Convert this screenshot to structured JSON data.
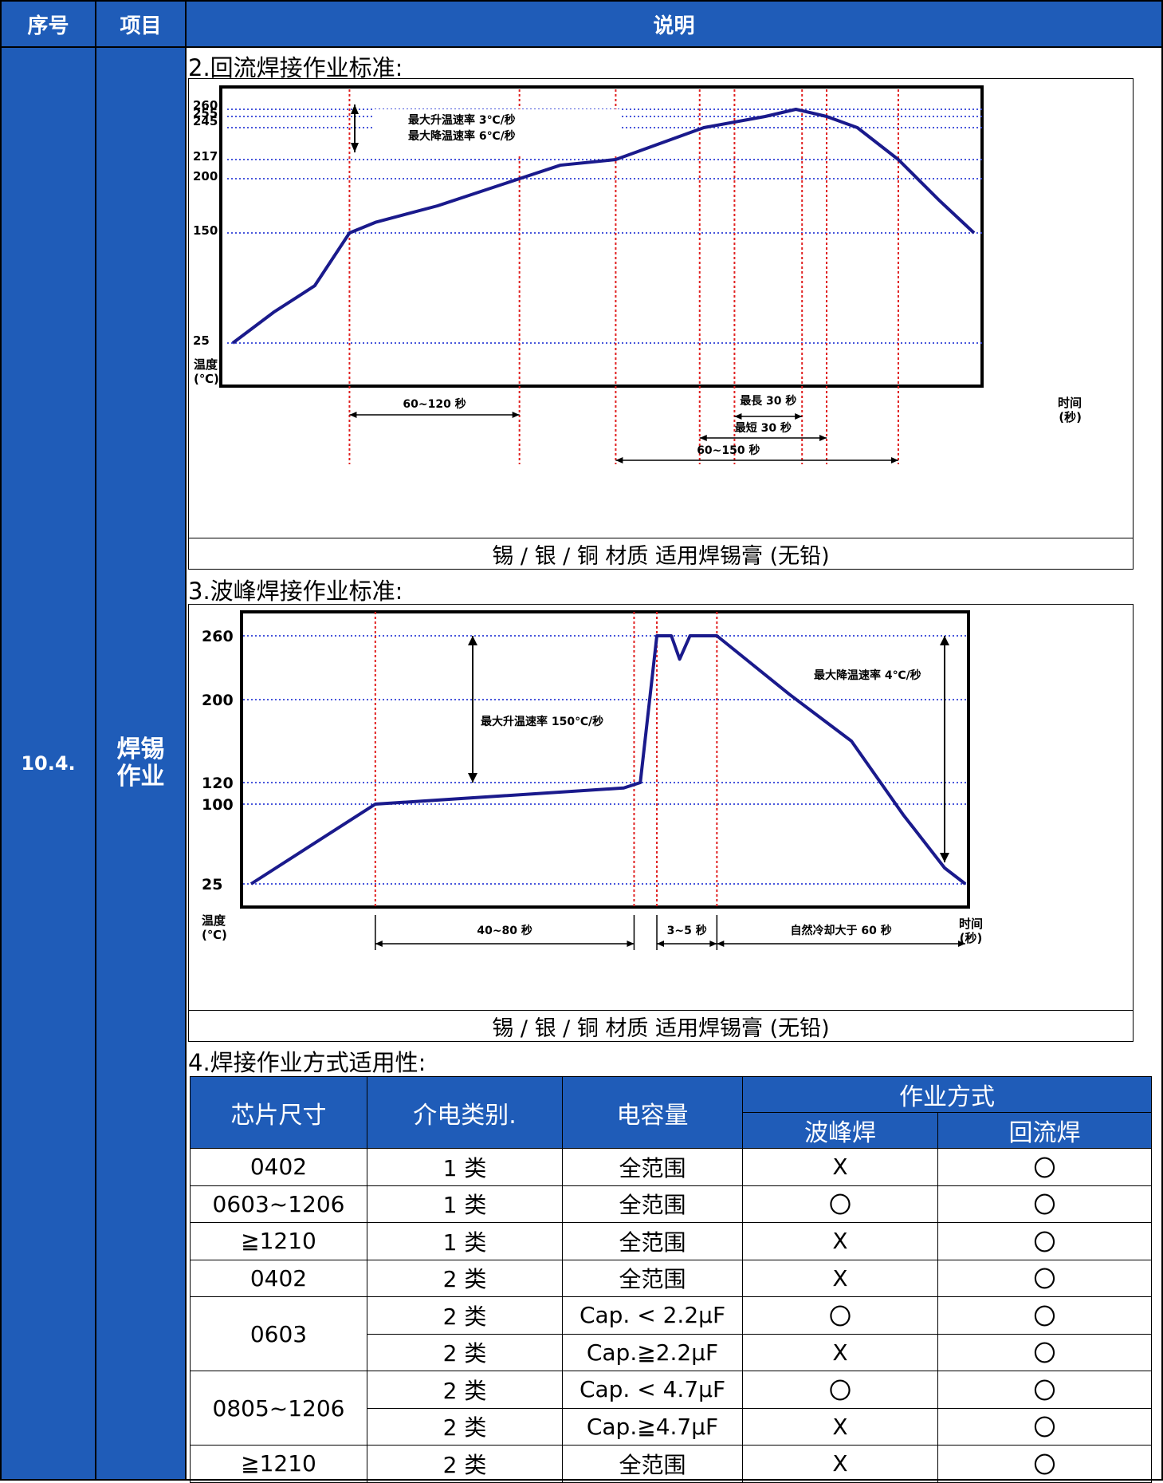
{
  "header": {
    "col_index": "序号",
    "col_item": "项目",
    "col_desc": "说明"
  },
  "section": {
    "number": "10.4.",
    "item": "焊锡\n作业"
  },
  "reflow": {
    "title": "2.回流焊接作业标准:",
    "caption": "锡 / 银 / 铜 材质 适用焊锡膏 (无铅)",
    "chart_data": {
      "type": "line",
      "ylabel": "温度\n(℃)",
      "xlabel": "时间\n(秒)",
      "y_ticks": [
        "260",
        "255",
        "245",
        "217",
        "200",
        "150",
        "25"
      ],
      "annotations": {
        "rise_fall": [
          "最大升温速率 3℃/秒",
          "最大降温速率 6℃/秒"
        ],
        "preheat": "60~120 秒",
        "peak_max": "最長 30 秒",
        "peak_min": "最短 30 秒",
        "above_liquidus": "60~150 秒"
      },
      "series": [
        {
          "points": [
            [
              0,
              25
            ],
            [
              20,
              60
            ],
            [
              40,
              90
            ],
            [
              57,
              150
            ],
            [
              70,
              160
            ],
            [
              100,
              175
            ],
            [
              140,
              200
            ],
            [
              160,
              212
            ],
            [
              187,
              217
            ],
            [
              230,
              245
            ],
            [
              260,
              255
            ],
            [
              275,
              260
            ],
            [
              290,
              255
            ],
            [
              305,
              245
            ],
            [
              325,
              217
            ],
            [
              345,
              180
            ],
            [
              362,
              150
            ]
          ]
        }
      ],
      "markers_x": [
        57,
        140,
        187,
        228,
        245,
        278,
        290,
        325
      ]
    }
  },
  "wave": {
    "title": "3.波峰焊接作业标准:",
    "caption": "锡 / 银 / 铜 材质 适用焊锡膏 (无铅)",
    "chart_data": {
      "type": "line",
      "ylabel": "温度\n(℃)",
      "xlabel": "时间\n(秒)",
      "y_ticks": [
        "260",
        "200",
        "120",
        "100",
        "25"
      ],
      "annotations": {
        "rise": "最大升温速率 150℃/秒",
        "fall": "最大降温速率 4℃/秒",
        "preheat": "40~80 秒",
        "wave": "3~5 秒",
        "cooling": "自然冷却大于 60 秒"
      },
      "series": [
        {
          "points": [
            [
              0,
              25
            ],
            [
              60,
              100
            ],
            [
              100,
              105
            ],
            [
              180,
              115
            ],
            [
              188,
              120
            ],
            [
              196,
              260
            ],
            [
              203,
              260
            ],
            [
              207,
              238
            ],
            [
              212,
              260
            ],
            [
              225,
              260
            ],
            [
              260,
              205
            ],
            [
              290,
              160
            ],
            [
              315,
              90
            ],
            [
              335,
              40
            ],
            [
              345,
              25
            ]
          ]
        }
      ],
      "markers_x": [
        60,
        185,
        196,
        225
      ]
    }
  },
  "applicability": {
    "title": "4.焊接作业方式适用性:",
    "headers": {
      "size": "芯片尺寸",
      "dielectric": "介电类别.",
      "capacitance": "电容量",
      "method": "作业方式",
      "wave": "波峰焊",
      "reflow": "回流焊"
    },
    "rows": [
      {
        "size": "0402",
        "dielectric": "1 类",
        "capacitance": "全范围",
        "wave": "X",
        "reflow": "〇"
      },
      {
        "size": "0603~1206",
        "dielectric": "1 类",
        "capacitance": "全范围",
        "wave": "〇",
        "reflow": "〇"
      },
      {
        "size": "≧1210",
        "dielectric": "1 类",
        "capacitance": "全范围",
        "wave": "X",
        "reflow": "〇"
      },
      {
        "size": "0402",
        "dielectric": "2 类",
        "capacitance": "全范围",
        "wave": "X",
        "reflow": "〇"
      },
      {
        "size": "0603",
        "dielectric": "2 类",
        "capacitance": "Cap. < 2.2μF",
        "wave": "〇",
        "reflow": "〇"
      },
      {
        "size": "",
        "dielectric": "2 类",
        "capacitance": "Cap.≧2.2μF",
        "wave": "X",
        "reflow": "〇"
      },
      {
        "size": "0805~1206",
        "dielectric": "2 类",
        "capacitance": "Cap. < 4.7μF",
        "wave": "〇",
        "reflow": "〇"
      },
      {
        "size": "",
        "dielectric": "2 类",
        "capacitance": "Cap.≧4.7μF",
        "wave": "X",
        "reflow": "〇"
      },
      {
        "size": "≧1210",
        "dielectric": "2 类",
        "capacitance": "全范围",
        "wave": "X",
        "reflow": "〇"
      }
    ]
  },
  "colors": {
    "header_blue": "#1f5cb8",
    "curve": "#1a1a8c",
    "grid_blue": "#2e3fd6",
    "marker_red": "#e02020"
  }
}
